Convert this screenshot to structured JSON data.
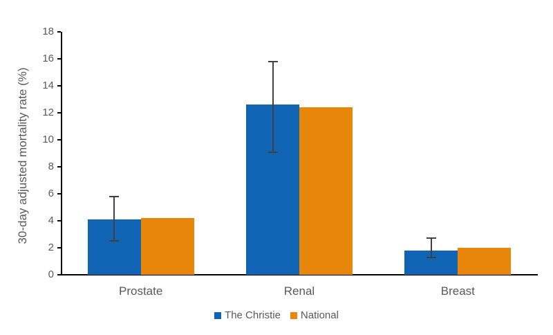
{
  "chart_data": {
    "type": "bar",
    "title": "",
    "xlabel": "",
    "ylabel": "30-day adjusted mortality rate (%)",
    "categories": [
      "Prostate",
      "Renal",
      "Breast"
    ],
    "series": [
      {
        "name": "The Christie",
        "color": "#1164B4",
        "values": [
          4.1,
          12.6,
          1.8
        ],
        "error_low": [
          2.5,
          9.1,
          1.3
        ],
        "error_high": [
          5.8,
          15.8,
          2.7
        ]
      },
      {
        "name": "National",
        "color": "#E8860B",
        "values": [
          4.2,
          12.4,
          2.0
        ]
      }
    ],
    "ylim": [
      0,
      18
    ],
    "yticks": [
      0,
      2,
      4,
      6,
      8,
      10,
      12,
      14,
      16,
      18
    ],
    "grid": false,
    "legend_position": "bottom",
    "axis_color": "#000000",
    "error_bar_color": "#404040",
    "tick_label_color": "#595959"
  }
}
